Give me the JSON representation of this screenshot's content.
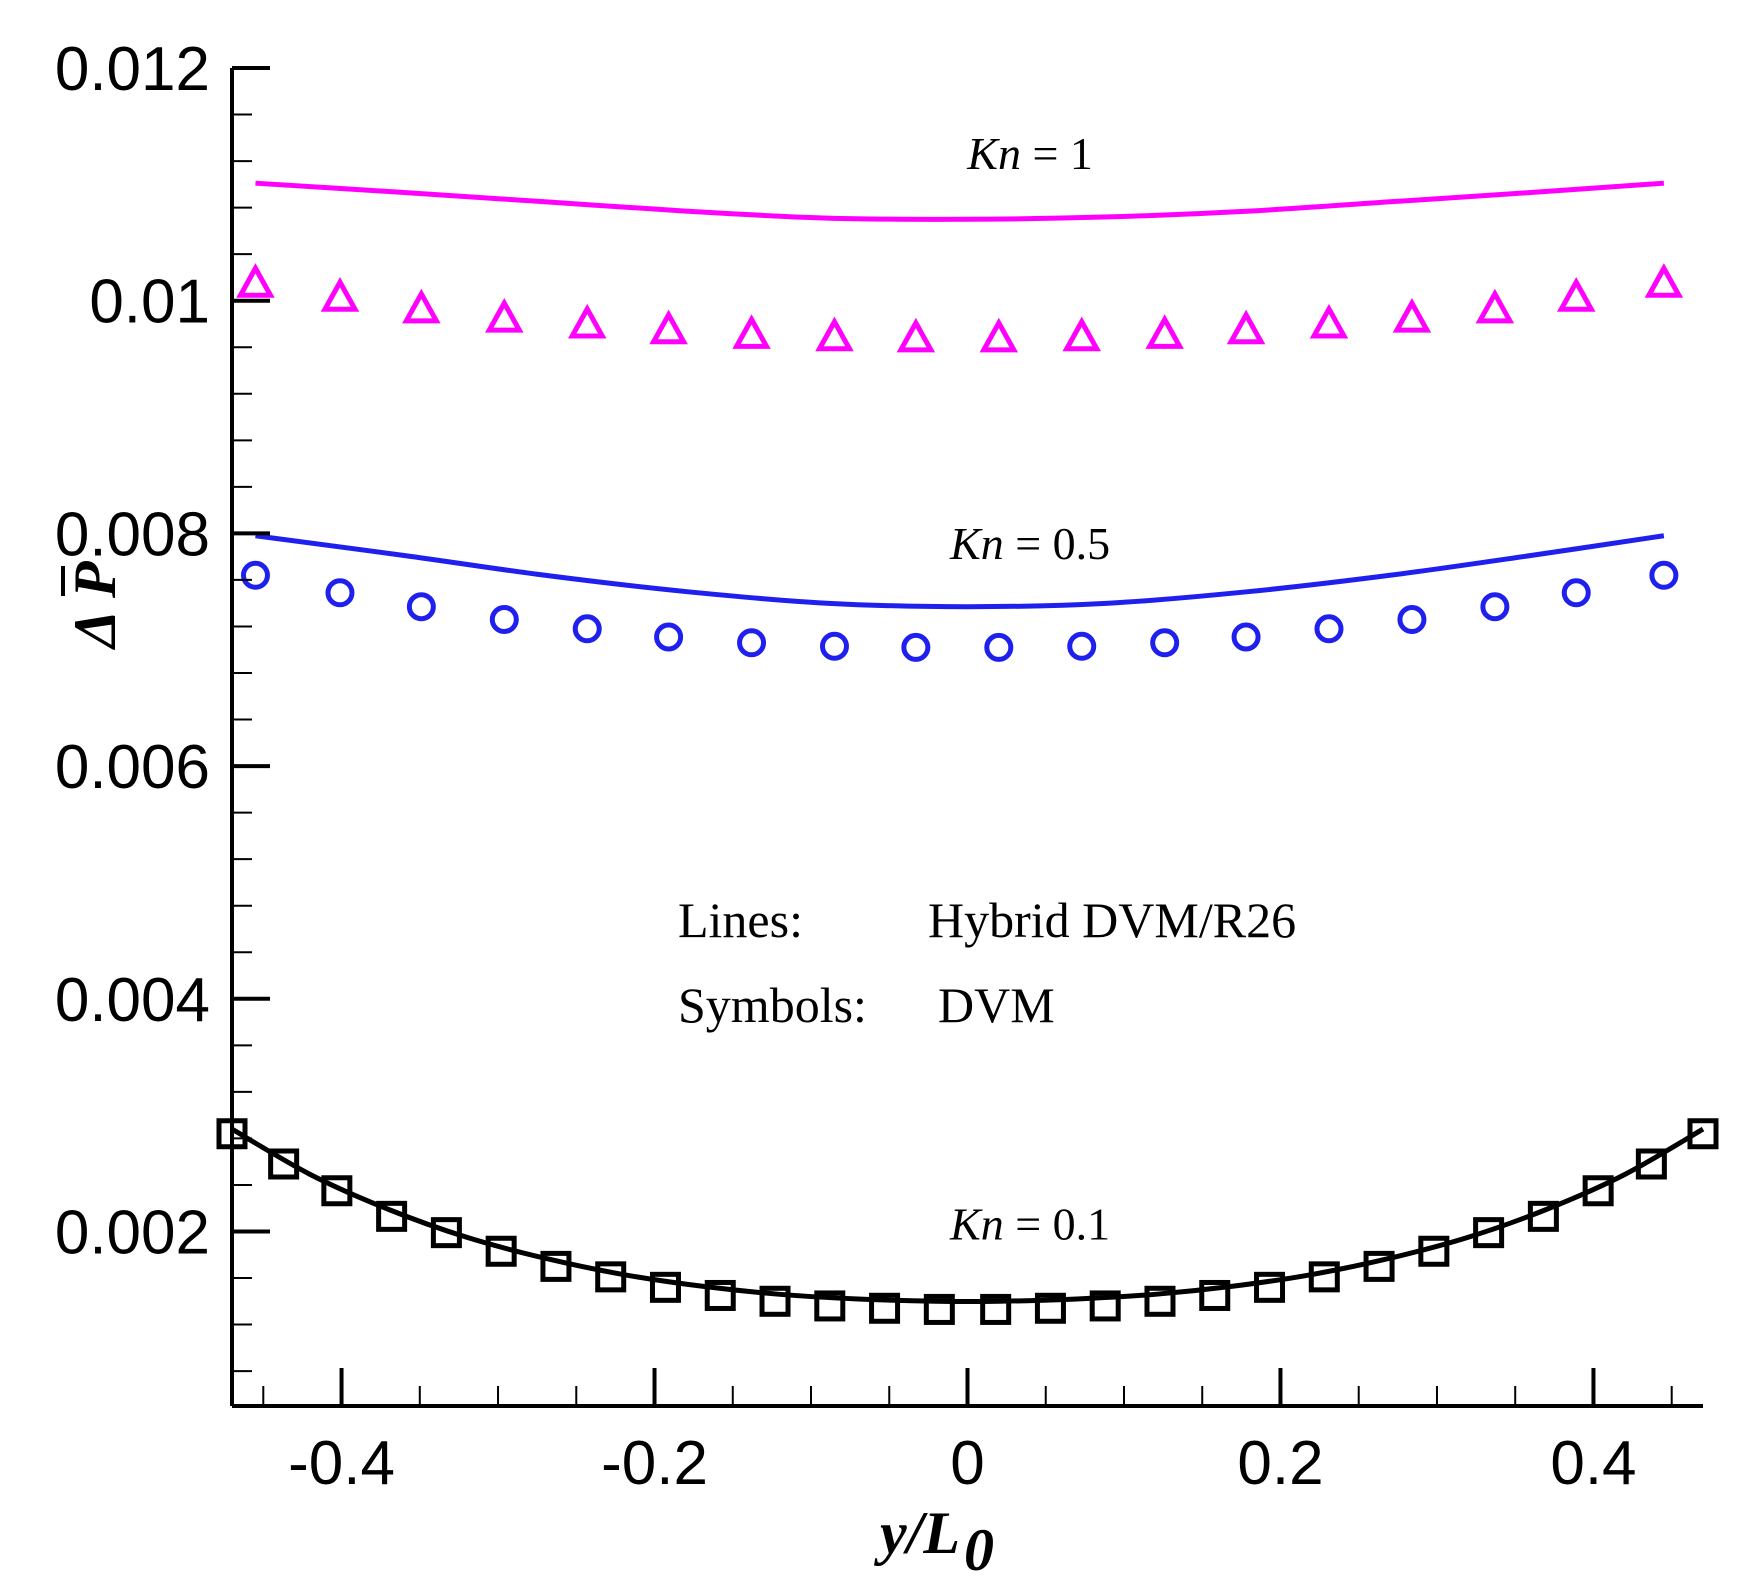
{
  "chart_data": {
    "type": "line",
    "title": "",
    "xlabel": {
      "main": "y/L",
      "sub": "0"
    },
    "ylabel": {
      "delta": "Δ",
      "symbol": "P"
    },
    "xlim": [
      -0.47,
      0.47
    ],
    "ylim": [
      0.0005,
      0.012
    ],
    "x_ticks": [
      -0.4,
      -0.2,
      0,
      0.2,
      0.4
    ],
    "x_tick_labels": [
      "-0.4",
      "-0.2",
      "0",
      "0.2",
      "0.4"
    ],
    "y_ticks": [
      0.002,
      0.004,
      0.006,
      0.008,
      0.01,
      0.012
    ],
    "y_tick_labels": [
      "0.002",
      "0.004",
      "0.006",
      "0.008",
      "0.01",
      "0.012"
    ],
    "legend": {
      "lines_label": "Lines:",
      "lines_value": "Hybrid DVM/R26",
      "symbols_label": "Symbols:",
      "symbols_value": "DVM"
    },
    "series": [
      {
        "name": "Kn = 1 Hybrid DVM/R26",
        "kind": "line",
        "color": "#ff00ff",
        "x": [
          -0.455,
          -0.36,
          -0.27,
          -0.18,
          -0.09,
          0,
          0.09,
          0.18,
          0.27,
          0.36,
          0.445
        ],
        "values": [
          0.01101,
          0.01093,
          0.01085,
          0.01077,
          0.01071,
          0.0107,
          0.01072,
          0.01077,
          0.01085,
          0.01093,
          0.01101
        ]
      },
      {
        "name": "Kn = 1 DVM",
        "kind": "triangle",
        "color": "#ff00ff",
        "x": [
          -0.455,
          -0.401,
          -0.349,
          -0.296,
          -0.243,
          -0.191,
          -0.138,
          -0.085,
          -0.033,
          0.02,
          0.073,
          0.126,
          0.178,
          0.231,
          0.284,
          0.337,
          0.389,
          0.445
        ],
        "values": [
          0.01015,
          0.01003,
          0.00993,
          0.00985,
          0.0098,
          0.00975,
          0.00971,
          0.00969,
          0.00968,
          0.00968,
          0.00969,
          0.00971,
          0.00975,
          0.0098,
          0.00985,
          0.00993,
          0.01003,
          0.01015
        ]
      },
      {
        "name": "Kn = 0.5 Hybrid DVM/R26",
        "kind": "line",
        "color": "#2020ee",
        "x": [
          -0.455,
          -0.36,
          -0.27,
          -0.18,
          -0.09,
          0,
          0.09,
          0.18,
          0.27,
          0.36,
          0.445
        ],
        "values": [
          0.00798,
          0.00781,
          0.00764,
          0.0075,
          0.0074,
          0.00737,
          0.0074,
          0.0075,
          0.00764,
          0.00781,
          0.00798
        ]
      },
      {
        "name": "Kn = 0.5 DVM",
        "kind": "circle",
        "color": "#2020ee",
        "x": [
          -0.455,
          -0.401,
          -0.349,
          -0.296,
          -0.243,
          -0.191,
          -0.138,
          -0.085,
          -0.033,
          0.02,
          0.073,
          0.126,
          0.178,
          0.231,
          0.284,
          0.337,
          0.389,
          0.445
        ],
        "values": [
          0.00764,
          0.00749,
          0.00737,
          0.00726,
          0.00718,
          0.00711,
          0.00706,
          0.00703,
          0.00702,
          0.00702,
          0.00703,
          0.00706,
          0.00711,
          0.00718,
          0.00726,
          0.00737,
          0.00749,
          0.00764
        ]
      },
      {
        "name": "Kn = 0.1 Hybrid DVM/R26",
        "kind": "line",
        "color": "#000000",
        "x": [
          -0.47,
          -0.42,
          -0.37,
          -0.32,
          -0.27,
          -0.22,
          -0.17,
          -0.12,
          -0.07,
          -0.02,
          0.02,
          0.07,
          0.12,
          0.17,
          0.22,
          0.27,
          0.32,
          0.37,
          0.42,
          0.47
        ],
        "values": [
          0.00288,
          0.00249,
          0.00219,
          0.00195,
          0.00177,
          0.00163,
          0.00153,
          0.00146,
          0.00142,
          0.0014,
          0.0014,
          0.00142,
          0.00146,
          0.00153,
          0.00163,
          0.00177,
          0.00195,
          0.00219,
          0.00249,
          0.00288
        ]
      },
      {
        "name": "Kn = 0.1 DVM",
        "kind": "square",
        "color": "#000000",
        "x": [
          -0.47,
          -0.437,
          -0.403,
          -0.368,
          -0.333,
          -0.298,
          -0.263,
          -0.228,
          -0.193,
          -0.158,
          -0.123,
          -0.088,
          -0.053,
          -0.018,
          0.018,
          0.053,
          0.088,
          0.123,
          0.158,
          0.193,
          0.228,
          0.263,
          0.298,
          0.333,
          0.368,
          0.403,
          0.437,
          0.47
        ],
        "values": [
          0.00284,
          0.00258,
          0.00235,
          0.00213,
          0.00199,
          0.00183,
          0.0017,
          0.00161,
          0.00152,
          0.00145,
          0.0014,
          0.00136,
          0.00134,
          0.00133,
          0.00133,
          0.00134,
          0.00136,
          0.0014,
          0.00145,
          0.00152,
          0.00161,
          0.0017,
          0.00183,
          0.00199,
          0.00213,
          0.00235,
          0.00258,
          0.00284
        ]
      }
    ],
    "annotations": [
      {
        "kn_label": "Kn",
        "value_text": "= 1",
        "x": 0.04,
        "y": 0.01113
      },
      {
        "kn_label": "Kn",
        "value_text": "= 0.5",
        "x": 0.04,
        "y": 0.00778
      },
      {
        "kn_label": "Kn",
        "value_text": "= 0.1",
        "x": 0.04,
        "y": 0.00193
      }
    ]
  }
}
